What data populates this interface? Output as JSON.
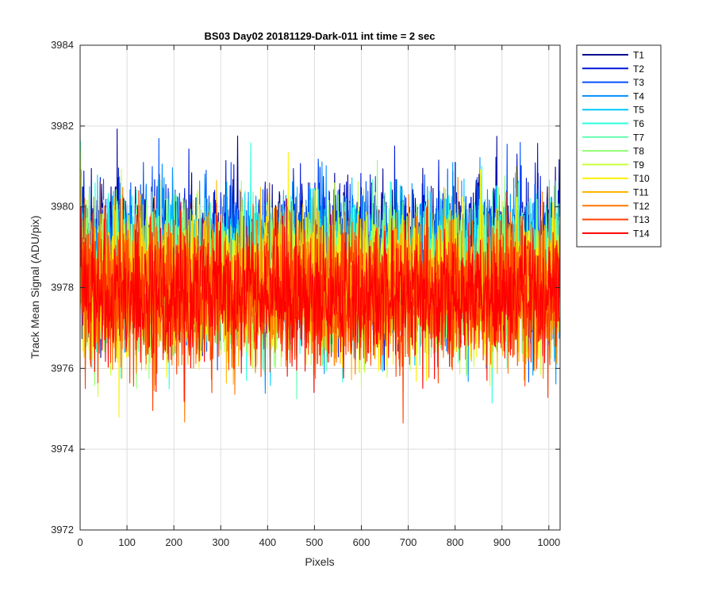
{
  "chart_data": {
    "type": "line",
    "title": "BS03 Day02 20181129-Dark-011 int time = 2 sec",
    "xlabel": "Pixels",
    "ylabel": "Track Mean Signal (ADU/pix)",
    "xlim": [
      0,
      1024
    ],
    "ylim": [
      3972,
      3984
    ],
    "xticks": [
      0,
      100,
      200,
      300,
      400,
      500,
      600,
      700,
      800,
      900,
      1000
    ],
    "yticks": [
      3972,
      3974,
      3976,
      3978,
      3980,
      3982,
      3984
    ],
    "grid": true,
    "legend_position": "outside-top-right",
    "x_count": 1024,
    "series": [
      {
        "name": "T1",
        "color": "#00008f",
        "mean": 3978.9,
        "std": 0.9
      },
      {
        "name": "T2",
        "color": "#0018d8",
        "mean": 3978.8,
        "std": 0.9
      },
      {
        "name": "T3",
        "color": "#0050ff",
        "mean": 3978.7,
        "std": 0.9
      },
      {
        "name": "T4",
        "color": "#0090ff",
        "mean": 3978.6,
        "std": 0.9
      },
      {
        "name": "T5",
        "color": "#00c8ff",
        "mean": 3978.5,
        "std": 0.9
      },
      {
        "name": "T6",
        "color": "#2cffdf",
        "mean": 3978.4,
        "std": 0.9
      },
      {
        "name": "T7",
        "color": "#60ffb0",
        "mean": 3978.3,
        "std": 0.9
      },
      {
        "name": "T8",
        "color": "#90ff70",
        "mean": 3978.2,
        "std": 0.9
      },
      {
        "name": "T9",
        "color": "#c8ff38",
        "mean": 3978.1,
        "std": 0.9
      },
      {
        "name": "T10",
        "color": "#fff000",
        "mean": 3978.0,
        "std": 0.9
      },
      {
        "name": "T11",
        "color": "#ffb800",
        "mean": 3978.0,
        "std": 0.9
      },
      {
        "name": "T12",
        "color": "#ff7800",
        "mean": 3977.9,
        "std": 0.9
      },
      {
        "name": "T13",
        "color": "#ff4000",
        "mean": 3977.9,
        "std": 0.9
      },
      {
        "name": "T14",
        "color": "#ff0000",
        "mean": 3977.8,
        "std": 0.85
      }
    ]
  }
}
